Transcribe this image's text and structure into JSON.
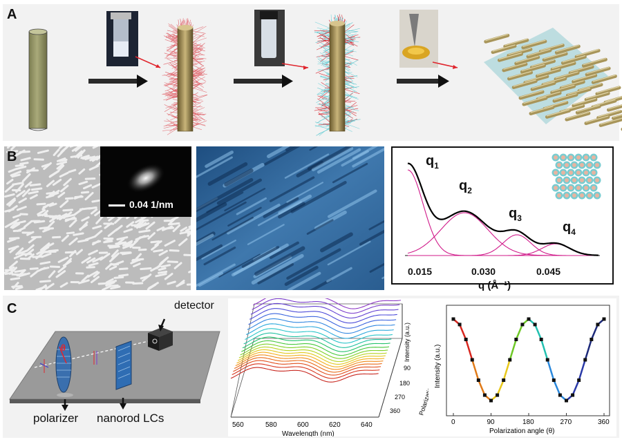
{
  "panel_labels": {
    "a": "A",
    "b": "B",
    "c": "C"
  },
  "panel_b": {
    "fft_scale": "0.04 1/nm",
    "saxs_chart": {
      "type": "line",
      "xlabel": "q (Å⁻¹)",
      "x_ticks": [
        "0.015",
        "0.030",
        "0.045"
      ],
      "peaks": [
        "q",
        "q",
        "q",
        "q"
      ],
      "peak_subscripts": [
        "1",
        "2",
        "3",
        "4"
      ]
    }
  },
  "panel_c": {
    "detector_label": "detector",
    "polarizer_label": "polarizer",
    "nanorod_label": "nanorod LCs",
    "angle_symbol": "θ",
    "spectra_chart": {
      "type": "line",
      "xlabel": "Wavelength  (nm)",
      "x_ticks": [
        "560",
        "580",
        "600",
        "620",
        "640"
      ],
      "zlabel": "Intensity (a.u.)",
      "ylabel": "Polarization angle (θ)",
      "y_ticks": [
        "90",
        "180",
        "270",
        "360"
      ]
    },
    "intensity_chart": {
      "type": "line",
      "xlabel": "Polarization angle (θ)",
      "ylabel": "Intensity (a.u.)",
      "x_ticks": [
        "0",
        "90",
        "180",
        "270",
        "360"
      ],
      "xlim": [
        0,
        360
      ],
      "x": [
        0,
        15,
        30,
        45,
        60,
        75,
        90,
        105,
        120,
        135,
        150,
        165,
        180,
        195,
        210,
        225,
        240,
        255,
        270,
        285,
        300,
        315,
        330,
        345,
        360
      ],
      "y": [
        1.0,
        0.933,
        0.75,
        0.5,
        0.25,
        0.067,
        0.0,
        0.067,
        0.25,
        0.5,
        0.75,
        0.933,
        1.0,
        0.933,
        0.75,
        0.5,
        0.25,
        0.067,
        0.0,
        0.067,
        0.25,
        0.5,
        0.75,
        0.933,
        1.0
      ]
    }
  },
  "colors": {
    "rod": "#9c9d6f",
    "ligand_red": "#d8303a",
    "ligand_cyan": "#5fc8d0",
    "saxs_fit": "#d01a8a"
  }
}
